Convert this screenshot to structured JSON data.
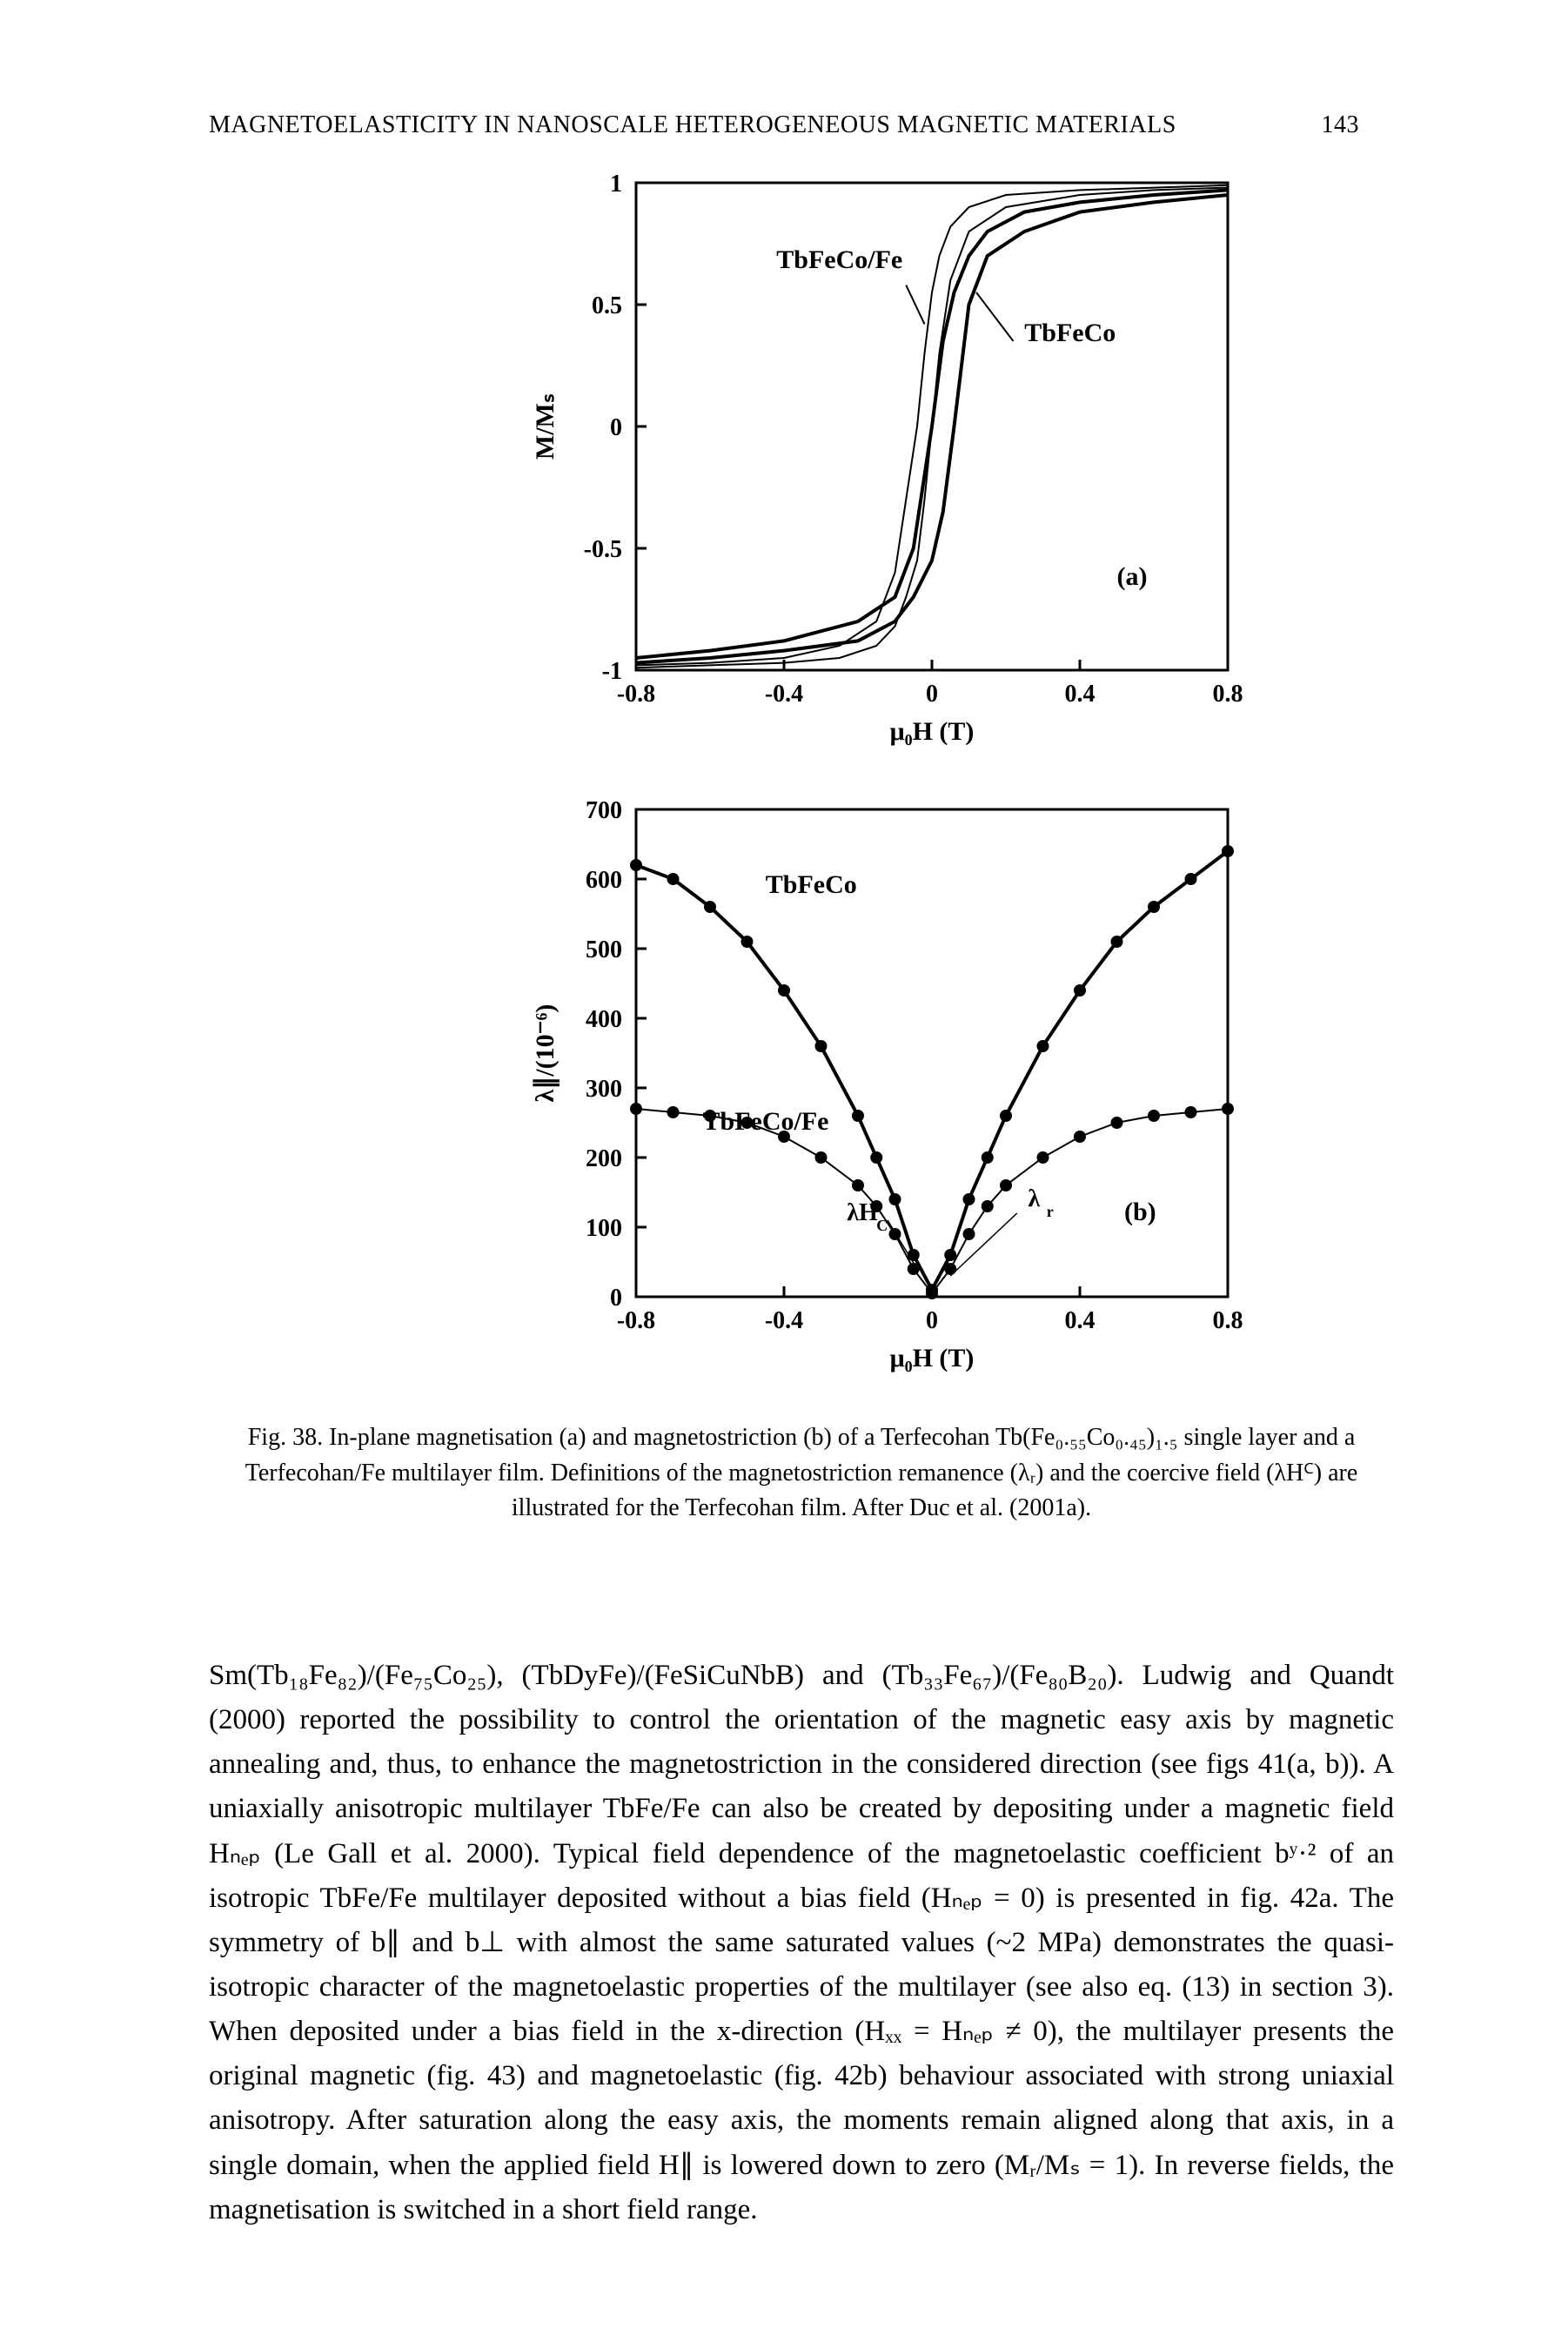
{
  "header": {
    "title": "MAGNETOELASTICITY IN NANOSCALE HETEROGENEOUS MAGNETIC MATERIALS",
    "page_number": "143"
  },
  "figure": {
    "caption": "Fig. 38. In-plane magnetisation (a) and magnetostriction (b) of a Terfecohan Tb(Fe₀.₅₅Co₀.₄₅)₁.₅ single layer and a Terfecohan/Fe multilayer film. Definitions of the magnetostriction remanence (λᵣ) and the coercive field (λHꟲ) are illustrated for the Terfecohan film. After Duc et al. (2001a).",
    "panel_a": {
      "type": "line",
      "xlabel": "μ₀H (T)",
      "ylabel": "M/Mₛ",
      "xlim": [
        -0.8,
        0.8
      ],
      "ylim": [
        -1.0,
        1.0
      ],
      "xticks": [
        -0.8,
        -0.4,
        0.0,
        0.4,
        0.8
      ],
      "yticks": [
        -1.0,
        -0.5,
        0.0,
        0.5,
        1.0
      ],
      "panel_label": "(a)",
      "label_fontsize": 30,
      "tick_fontsize": 28,
      "line_color": "#000000",
      "background_color": "#ffffff",
      "series": [
        {
          "name": "TbFeCo/Fe",
          "line_width": 2,
          "x": [
            -0.8,
            -0.6,
            -0.4,
            -0.25,
            -0.15,
            -0.1,
            -0.07,
            -0.04,
            -0.02,
            0.0,
            0.02,
            0.05,
            0.1,
            0.2,
            0.4,
            0.6,
            0.8
          ],
          "y_up": [
            -0.98,
            -0.97,
            -0.95,
            -0.9,
            -0.8,
            -0.6,
            -0.3,
            0.0,
            0.3,
            0.55,
            0.7,
            0.82,
            0.9,
            0.95,
            0.97,
            0.98,
            0.99
          ],
          "y_down": [
            -0.99,
            -0.98,
            -0.97,
            -0.95,
            -0.9,
            -0.82,
            -0.7,
            -0.55,
            -0.3,
            0.0,
            0.3,
            0.6,
            0.8,
            0.9,
            0.95,
            0.97,
            0.98
          ]
        },
        {
          "name": "TbFeCo",
          "line_width": 4,
          "x": [
            -0.8,
            -0.6,
            -0.4,
            -0.2,
            -0.1,
            -0.05,
            0.0,
            0.03,
            0.06,
            0.1,
            0.15,
            0.25,
            0.4,
            0.6,
            0.8
          ],
          "y_up": [
            -0.95,
            -0.92,
            -0.88,
            -0.8,
            -0.7,
            -0.5,
            0.0,
            0.35,
            0.55,
            0.7,
            0.8,
            0.88,
            0.92,
            0.95,
            0.97
          ],
          "y_down": [
            -0.97,
            -0.95,
            -0.92,
            -0.88,
            -0.8,
            -0.7,
            -0.55,
            -0.35,
            0.0,
            0.5,
            0.7,
            0.8,
            0.88,
            0.92,
            0.95
          ]
        }
      ]
    },
    "panel_b": {
      "type": "scatter+line",
      "xlabel": "μ₀H (T)",
      "ylabel": "λ∥/(10⁻⁶)",
      "xlim": [
        -0.8,
        0.8
      ],
      "ylim": [
        0,
        700
      ],
      "xticks": [
        -0.8,
        -0.4,
        0,
        0.4,
        0.8
      ],
      "yticks": [
        0,
        100,
        200,
        300,
        400,
        500,
        600,
        700
      ],
      "panel_label": "(b)",
      "marker_color": "#000000",
      "marker_size": 7,
      "line_color": "#000000",
      "background_color": "#ffffff",
      "annotations": [
        "TbFeCo",
        "TbFeCo/Fe",
        "λHꟲ",
        "λᵣ"
      ],
      "series": [
        {
          "name": "TbFeCo",
          "line_width": 4,
          "x": [
            -0.8,
            -0.7,
            -0.6,
            -0.5,
            -0.4,
            -0.3,
            -0.2,
            -0.15,
            -0.1,
            -0.05,
            0.0,
            0.05,
            0.1,
            0.15,
            0.2,
            0.3,
            0.4,
            0.5,
            0.6,
            0.7,
            0.8
          ],
          "y": [
            620,
            600,
            560,
            510,
            440,
            360,
            260,
            200,
            140,
            60,
            10,
            60,
            140,
            200,
            260,
            360,
            440,
            510,
            560,
            600,
            640
          ]
        },
        {
          "name": "TbFeCo/Fe",
          "line_width": 2,
          "x": [
            -0.8,
            -0.7,
            -0.6,
            -0.5,
            -0.4,
            -0.3,
            -0.2,
            -0.15,
            -0.1,
            -0.05,
            0.0,
            0.05,
            0.1,
            0.15,
            0.2,
            0.3,
            0.4,
            0.5,
            0.6,
            0.7,
            0.8
          ],
          "y": [
            270,
            265,
            260,
            250,
            230,
            200,
            160,
            130,
            90,
            40,
            5,
            40,
            90,
            130,
            160,
            200,
            230,
            250,
            260,
            265,
            270
          ]
        }
      ]
    }
  },
  "body": {
    "text": "Sm(Tb₁₈Fe₈₂)/(Fe₇₅Co₂₅), (TbDyFe)/(FeSiCuNbB) and (Tb₃₃Fe₆₇)/(Fe₈₀B₂₀). Ludwig and Quandt (2000) reported the possibility to control the orientation of the magnetic easy axis by magnetic annealing and, thus, to enhance the magnetostriction in the considered direction (see figs 41(a, b)). A uniaxially anisotropic multilayer TbFe/Fe can also be created by depositing under a magnetic field Hₙₑₚ (Le Gall et al. 2000). Typical field dependence of the magnetoelastic coefficient bʸ·² of an isotropic TbFe/Fe multilayer deposited without a bias field (Hₙₑₚ = 0) is presented in fig. 42a. The symmetry of b∥ and b⊥ with almost the same saturated values (~2 MPa) demonstrates the quasi-isotropic character of the magnetoelastic properties of the multilayer (see also eq. (13) in section 3). When deposited under a bias field in the x-direction (Hₓₓ = Hₙₑₚ ≠ 0), the multilayer presents the original magnetic (fig. 43) and magnetoelastic (fig. 42b) behaviour associated with strong uniaxial anisotropy. After saturation along the easy axis, the moments remain aligned along that axis, in a single domain, when the applied field H∥ is lowered down to zero (Mᵣ/Mₛ = 1). In reverse fields, the magnetisation is switched in a short field range."
  }
}
